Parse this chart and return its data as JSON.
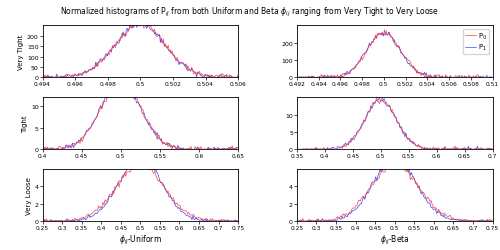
{
  "title": "Normalized histograms of P$_{ij}$ from both Uniform and Beta $\\phi_{ij}$ ranging from Very Tight to Very Loose",
  "col_labels": [
    "$\\phi_{ij}$-Uniform",
    "$\\phi_{ij}$-Beta"
  ],
  "row_labels": [
    "Very Tight",
    "Tight",
    "Very Loose"
  ],
  "legend_labels": [
    "P$_0$",
    "P$_1$"
  ],
  "red_color": "#FF2222",
  "blue_color": "#2222FF",
  "seed": 42,
  "panel_configs": [
    {
      "xlim": [
        0.494,
        0.506
      ],
      "ylim": [
        0,
        250
      ],
      "yticks": [
        0,
        50,
        100,
        150,
        200
      ],
      "xticks": [
        0.494,
        0.496,
        0.498,
        0.5,
        0.502,
        0.504,
        0.506
      ],
      "xticklabels": [
        "0.494",
        "0.496",
        "0.498",
        "0.5",
        "0.502",
        "0.504",
        "0.506"
      ],
      "mu_r": 0.5,
      "s_r": 0.00155,
      "mu_b": 0.5,
      "s_b": 0.00155,
      "nbins": 200,
      "ns": 100000,
      "noise_r": 7.5,
      "noise_b": 6.0
    },
    {
      "xlim": [
        0.492,
        0.51
      ],
      "ylim": [
        0,
        300
      ],
      "yticks": [
        0,
        100,
        200
      ],
      "xticks": [
        0.492,
        0.494,
        0.496,
        0.498,
        0.5,
        0.502,
        0.504,
        0.506,
        0.508,
        0.51
      ],
      "xticklabels": [
        "0.492",
        "0.494",
        "0.496",
        "0.498",
        "0.5",
        "0.502",
        "0.504",
        "0.506",
        "0.508",
        "0.51"
      ],
      "mu_r": 0.5,
      "s_r": 0.00155,
      "mu_b": 0.5,
      "s_b": 0.00155,
      "nbins": 220,
      "ns": 100000,
      "noise_r": 7.5,
      "noise_b": 6.0
    },
    {
      "xlim": [
        0.4,
        0.65
      ],
      "ylim": [
        0,
        12
      ],
      "yticks": [
        0,
        5,
        10
      ],
      "xticks": [
        0.4,
        0.45,
        0.5,
        0.55,
        0.6,
        0.65
      ],
      "xticklabels": [
        "0.4",
        "0.45",
        "0.5",
        "0.55",
        "0.6",
        "0.65"
      ],
      "mu_r": 0.5,
      "s_r": 0.026,
      "mu_b": 0.5,
      "s_b": 0.026,
      "nbins": 180,
      "ns": 100000,
      "noise_r": 0.32,
      "noise_b": 0.28
    },
    {
      "xlim": [
        0.35,
        0.7
      ],
      "ylim": [
        0,
        15
      ],
      "yticks": [
        0,
        5,
        10
      ],
      "xticks": [
        0.35,
        0.4,
        0.45,
        0.5,
        0.55,
        0.6,
        0.65,
        0.7
      ],
      "xticklabels": [
        "0.35",
        "0.4",
        "0.45",
        "0.5",
        "0.55",
        "0.6",
        "0.65",
        "0.7"
      ],
      "mu_r": 0.5,
      "s_r": 0.028,
      "mu_b": 0.5,
      "s_b": 0.028,
      "nbins": 200,
      "ns": 100000,
      "noise_r": 0.32,
      "noise_b": 0.28
    },
    {
      "xlim": [
        0.25,
        0.75
      ],
      "ylim": [
        0,
        6
      ],
      "yticks": [
        0,
        2,
        4
      ],
      "xticks": [
        0.25,
        0.3,
        0.35,
        0.4,
        0.45,
        0.5,
        0.55,
        0.6,
        0.65,
        0.7,
        0.75
      ],
      "xticklabels": [
        "0.25",
        "0.3",
        "0.35",
        "0.4",
        "0.45",
        "0.5",
        "0.55",
        "0.6",
        "0.65",
        "0.7",
        "0.75"
      ],
      "mu_r": 0.5,
      "s_r": 0.062,
      "mu_b": 0.5,
      "s_b": 0.055,
      "nbins": 180,
      "ns": 100000,
      "noise_r": 0.12,
      "noise_b": 0.1
    },
    {
      "xlim": [
        0.25,
        0.75
      ],
      "ylim": [
        0,
        6
      ],
      "yticks": [
        0,
        2,
        4
      ],
      "xticks": [
        0.25,
        0.3,
        0.35,
        0.4,
        0.45,
        0.5,
        0.55,
        0.6,
        0.65,
        0.7,
        0.75
      ],
      "xticklabels": [
        "0.25",
        "0.3",
        "0.35",
        "0.4",
        "0.45",
        "0.5",
        "0.55",
        "0.6",
        "0.65",
        "0.7",
        "0.75"
      ],
      "mu_r": 0.5,
      "s_r": 0.062,
      "mu_b": 0.5,
      "s_b": 0.055,
      "nbins": 180,
      "ns": 100000,
      "noise_r": 0.12,
      "noise_b": 0.1
    }
  ]
}
